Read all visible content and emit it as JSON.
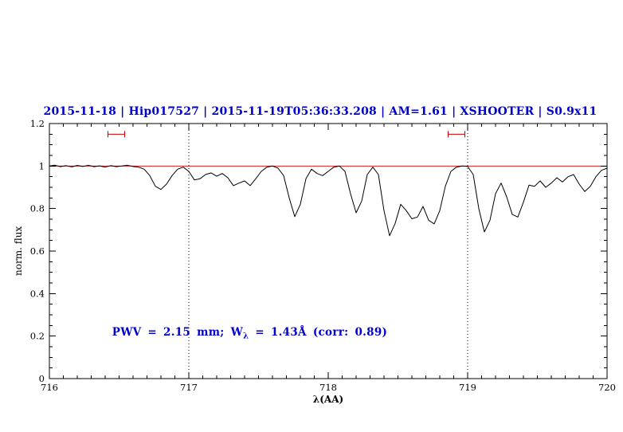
{
  "chart_data": {
    "type": "line",
    "title": "2015-11-18 | Hip017527 | 2015-11-19T05:36:33.208 | AM=1.61 | XSHOOTER | S0.9x11",
    "title_color": "#0000cc",
    "xlabel": "λ(AA)",
    "ylabel": "norm. flux",
    "xlim": [
      716,
      720
    ],
    "ylim": [
      0,
      1.2
    ],
    "x_ticks": [
      716,
      717,
      718,
      719,
      720
    ],
    "x_tick_labels": [
      "716",
      "717",
      "718",
      "719",
      "720"
    ],
    "x_minor_step": 0.1,
    "y_ticks": [
      0,
      0.2,
      0.4,
      0.6,
      0.8,
      1,
      1.2
    ],
    "y_tick_labels": [
      "0",
      "0.2",
      "0.4",
      "0.6",
      "0.8",
      "1",
      "1.2"
    ],
    "y_minor_step": 0.05,
    "grid": "off",
    "legend": "none",
    "dotted_vlines": [
      717,
      719
    ],
    "continuum": {
      "y": 1.0,
      "color": "#cc0000"
    },
    "marker_color": "#cc0000",
    "range_markers": [
      {
        "x1": 716.42,
        "x2": 716.54,
        "y": 1.15
      },
      {
        "x1": 718.86,
        "x2": 718.98,
        "y": 1.15
      }
    ],
    "annotation": {
      "x": 716.45,
      "y": 0.2,
      "color": "#0000cc",
      "pre": "PWV = 2.15 mm; W",
      "sub": "λ",
      "post": " = 1.43Å (corr: 0.89)"
    },
    "series": [
      {
        "name": "spectrum",
        "color": "#000000",
        "points": [
          [
            716.0,
            1.0
          ],
          [
            716.04,
            1.004
          ],
          [
            716.08,
            0.997
          ],
          [
            716.12,
            1.002
          ],
          [
            716.16,
            0.996
          ],
          [
            716.2,
            1.003
          ],
          [
            716.24,
            0.998
          ],
          [
            716.28,
            1.004
          ],
          [
            716.32,
            0.997
          ],
          [
            716.36,
            1.001
          ],
          [
            716.4,
            0.995
          ],
          [
            716.44,
            1.002
          ],
          [
            716.48,
            0.997
          ],
          [
            716.52,
            1.0
          ],
          [
            716.56,
            1.004
          ],
          [
            716.6,
            0.998
          ],
          [
            716.64,
            0.995
          ],
          [
            716.68,
            0.985
          ],
          [
            716.72,
            0.955
          ],
          [
            716.76,
            0.905
          ],
          [
            716.8,
            0.89
          ],
          [
            716.84,
            0.915
          ],
          [
            716.88,
            0.955
          ],
          [
            716.92,
            0.985
          ],
          [
            716.96,
            0.995
          ],
          [
            717.0,
            0.975
          ],
          [
            717.04,
            0.935
          ],
          [
            717.08,
            0.94
          ],
          [
            717.12,
            0.96
          ],
          [
            717.16,
            0.968
          ],
          [
            717.2,
            0.952
          ],
          [
            717.24,
            0.965
          ],
          [
            717.28,
            0.945
          ],
          [
            717.32,
            0.908
          ],
          [
            717.36,
            0.92
          ],
          [
            717.4,
            0.93
          ],
          [
            717.44,
            0.908
          ],
          [
            717.48,
            0.94
          ],
          [
            717.52,
            0.975
          ],
          [
            717.56,
            0.995
          ],
          [
            717.6,
            1.0
          ],
          [
            717.64,
            0.99
          ],
          [
            717.68,
            0.955
          ],
          [
            717.72,
            0.85
          ],
          [
            717.76,
            0.762
          ],
          [
            717.8,
            0.82
          ],
          [
            717.84,
            0.94
          ],
          [
            717.88,
            0.985
          ],
          [
            717.92,
            0.965
          ],
          [
            717.96,
            0.955
          ],
          [
            718.0,
            0.975
          ],
          [
            718.04,
            0.995
          ],
          [
            718.08,
            1.0
          ],
          [
            718.12,
            0.975
          ],
          [
            718.16,
            0.87
          ],
          [
            718.2,
            0.78
          ],
          [
            718.24,
            0.835
          ],
          [
            718.28,
            0.96
          ],
          [
            718.32,
            0.995
          ],
          [
            718.36,
            0.96
          ],
          [
            718.4,
            0.79
          ],
          [
            718.44,
            0.672
          ],
          [
            718.48,
            0.73
          ],
          [
            718.52,
            0.82
          ],
          [
            718.56,
            0.79
          ],
          [
            718.6,
            0.752
          ],
          [
            718.64,
            0.76
          ],
          [
            718.68,
            0.81
          ],
          [
            718.72,
            0.745
          ],
          [
            718.76,
            0.728
          ],
          [
            718.8,
            0.79
          ],
          [
            718.84,
            0.905
          ],
          [
            718.88,
            0.975
          ],
          [
            718.92,
            0.995
          ],
          [
            718.96,
            1.0
          ],
          [
            719.0,
            0.998
          ],
          [
            719.04,
            0.96
          ],
          [
            719.08,
            0.8
          ],
          [
            719.12,
            0.69
          ],
          [
            719.16,
            0.745
          ],
          [
            719.2,
            0.87
          ],
          [
            719.24,
            0.92
          ],
          [
            719.28,
            0.855
          ],
          [
            719.32,
            0.772
          ],
          [
            719.36,
            0.76
          ],
          [
            719.4,
            0.83
          ],
          [
            719.44,
            0.91
          ],
          [
            719.48,
            0.905
          ],
          [
            719.52,
            0.93
          ],
          [
            719.56,
            0.9
          ],
          [
            719.6,
            0.92
          ],
          [
            719.64,
            0.945
          ],
          [
            719.68,
            0.925
          ],
          [
            719.72,
            0.95
          ],
          [
            719.76,
            0.96
          ],
          [
            719.8,
            0.915
          ],
          [
            719.84,
            0.88
          ],
          [
            719.88,
            0.905
          ],
          [
            719.92,
            0.95
          ],
          [
            719.96,
            0.98
          ],
          [
            720.0,
            0.99
          ]
        ]
      }
    ]
  }
}
